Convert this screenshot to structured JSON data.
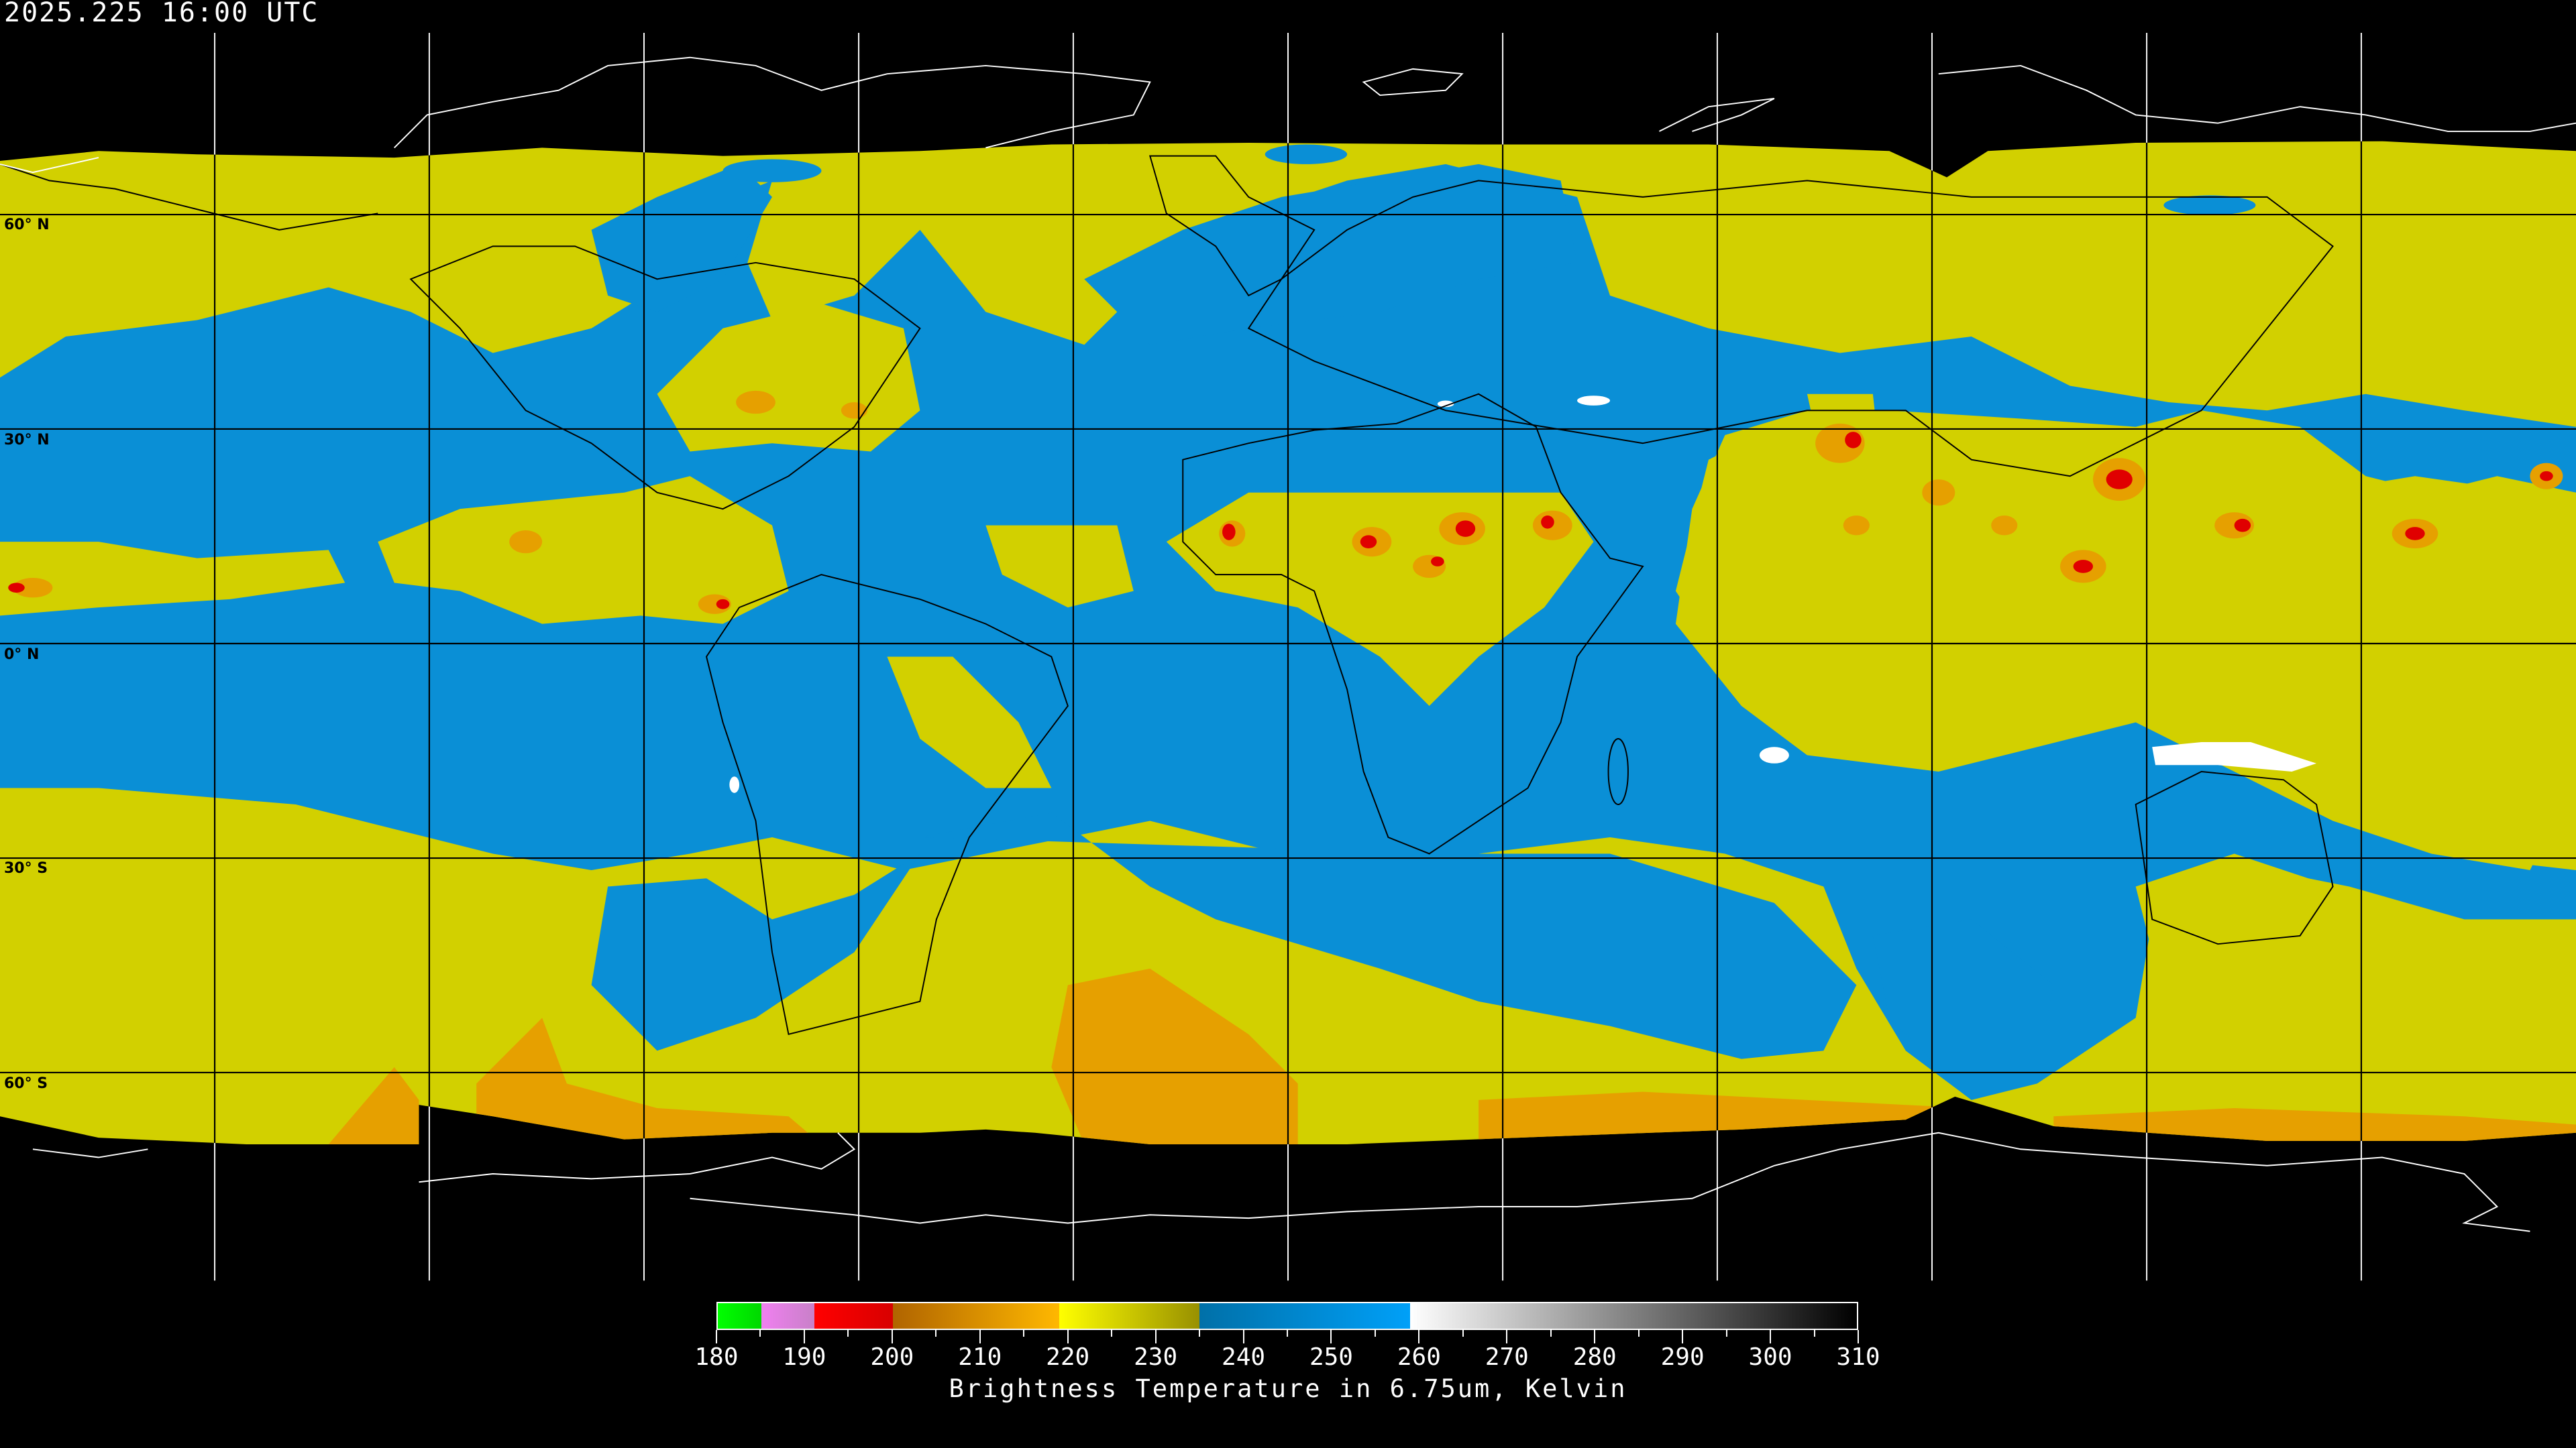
{
  "header": {
    "timestamp": "2025.225 16:00 UTC"
  },
  "map": {
    "projection": "equirectangular",
    "grid_spacing_degrees": 30,
    "latitude_labels": [
      "60° N",
      "30° N",
      "0° N",
      "30° S",
      "60° S"
    ],
    "colors": {
      "background": "#000000",
      "dry_blue": "#0a8fd6",
      "moist_yellow": "#d2d000",
      "cold_orange": "#e6a000",
      "very_cold_red": "#e00000",
      "warm_white": "#ffffff",
      "coastline_over_space": "#ffffff",
      "coastline_over_image": "#000000"
    }
  },
  "colorbar": {
    "title": "Brightness Temperature in 6.75um, Kelvin",
    "min": 180,
    "max": 310,
    "tick_labels": [
      "180",
      "190",
      "200",
      "210",
      "220",
      "230",
      "240",
      "250",
      "260",
      "270",
      "280",
      "290",
      "300",
      "310"
    ],
    "segments": [
      {
        "from": 180,
        "to": 185,
        "start": "#00ff00",
        "end": "#00d800"
      },
      {
        "from": 185,
        "to": 191,
        "start": "#f080f0",
        "end": "#c880c8"
      },
      {
        "from": 191,
        "to": 200,
        "start": "#ff0000",
        "end": "#d80000"
      },
      {
        "from": 200,
        "to": 219,
        "start": "#b06400",
        "end": "#ffb800"
      },
      {
        "from": 219,
        "to": 235,
        "start": "#ffff00",
        "end": "#989000"
      },
      {
        "from": 235,
        "to": 259,
        "start": "#0070a8",
        "end": "#00a0f8"
      },
      {
        "from": 259,
        "to": 310,
        "start": "#ffffff",
        "end": "#000000"
      }
    ]
  }
}
